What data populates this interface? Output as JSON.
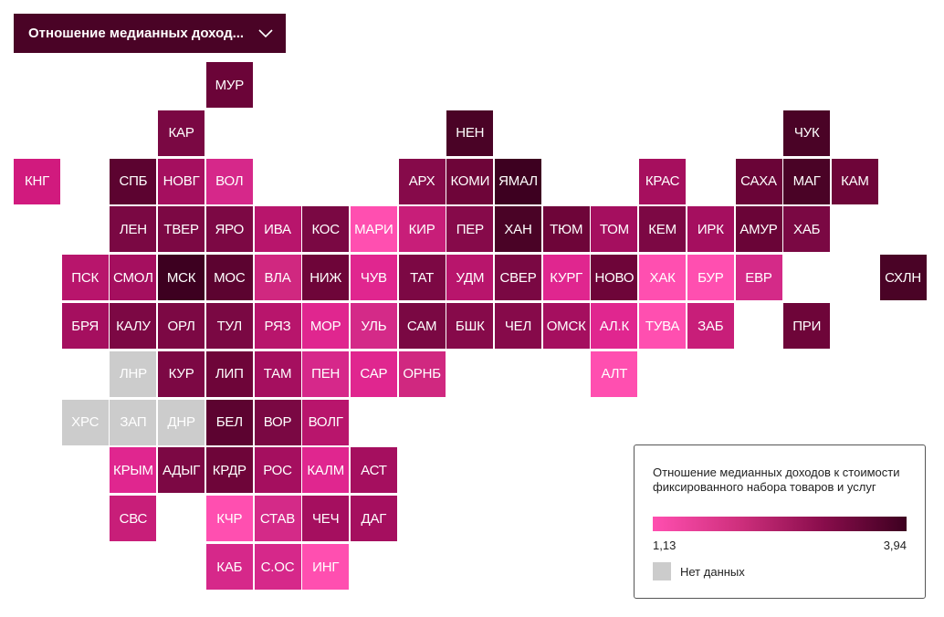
{
  "selector": {
    "label": "Отношение медианных доход...",
    "icon": "chevron-down-icon"
  },
  "legend": {
    "title": "Отношение медианных доходов к стоимости фиксированного набора товаров и услуг",
    "min": "1,13",
    "max": "3,94",
    "gradient_colors": [
      "#ff4fb0",
      "#d0307e",
      "#8a0d4c",
      "#3d0020"
    ],
    "nodata_label": "Нет данных",
    "nodata_color": "#cccccc"
  },
  "regions": [
    {
      "label": "МУР",
      "row": 0,
      "col": 4,
      "color": "#6b0438"
    },
    {
      "label": "КАР",
      "row": 1,
      "col": 3,
      "color": "#7a0843"
    },
    {
      "label": "НЕН",
      "row": 1,
      "col": 9,
      "color": "#4a0326"
    },
    {
      "label": "ЧУК",
      "row": 1,
      "col": 16,
      "color": "#4a0326"
    },
    {
      "label": "КНГ",
      "row": 2,
      "col": 0,
      "color": "#d11a7e"
    },
    {
      "label": "СПБ",
      "row": 2,
      "col": 2,
      "color": "#5c0330"
    },
    {
      "label": "НОВГ",
      "row": 2,
      "col": 3,
      "color": "#a50f5f"
    },
    {
      "label": "ВОЛ",
      "row": 2,
      "col": 4,
      "color": "#d6288a"
    },
    {
      "label": "АРХ",
      "row": 2,
      "col": 8,
      "color": "#860a4a"
    },
    {
      "label": "КОМИ",
      "row": 2,
      "col": 9,
      "color": "#6e0539"
    },
    {
      "label": "ЯМАЛ",
      "row": 2,
      "col": 10,
      "color": "#3d0020"
    },
    {
      "label": "КРАС",
      "row": 2,
      "col": 13,
      "color": "#a60f5e"
    },
    {
      "label": "САХА",
      "row": 2,
      "col": 15,
      "color": "#6a0437"
    },
    {
      "label": "МАГ",
      "row": 2,
      "col": 16,
      "color": "#4a0326"
    },
    {
      "label": "КАМ",
      "row": 2,
      "col": 17,
      "color": "#6e0539"
    },
    {
      "label": "ЛЕН",
      "row": 3,
      "col": 2,
      "color": "#7a0843"
    },
    {
      "label": "ТВЕР",
      "row": 3,
      "col": 3,
      "color": "#7c0844"
    },
    {
      "label": "ЯРО",
      "row": 3,
      "col": 4,
      "color": "#7c0844"
    },
    {
      "label": "ИВА",
      "row": 3,
      "col": 5,
      "color": "#b8156c"
    },
    {
      "label": "КОС",
      "row": 3,
      "col": 6,
      "color": "#7a0843"
    },
    {
      "label": "МАРИ",
      "row": 3,
      "col": 7,
      "color": "#ff4fb0"
    },
    {
      "label": "КИР",
      "row": 3,
      "col": 8,
      "color": "#c81e79"
    },
    {
      "label": "ПЕР",
      "row": 3,
      "col": 9,
      "color": "#860a4a"
    },
    {
      "label": "ХАН",
      "row": 3,
      "col": 10,
      "color": "#4a0326"
    },
    {
      "label": "ТЮМ",
      "row": 3,
      "col": 11,
      "color": "#6e0539"
    },
    {
      "label": "ТОМ",
      "row": 3,
      "col": 12,
      "color": "#a50f5f"
    },
    {
      "label": "КЕМ",
      "row": 3,
      "col": 13,
      "color": "#7c0844"
    },
    {
      "label": "ИРК",
      "row": 3,
      "col": 14,
      "color": "#a50f5f"
    },
    {
      "label": "АМУР",
      "row": 3,
      "col": 15,
      "color": "#6a0437"
    },
    {
      "label": "ХАБ",
      "row": 3,
      "col": 16,
      "color": "#7a0843"
    },
    {
      "label": "ПСК",
      "row": 4,
      "col": 1,
      "color": "#b8156c"
    },
    {
      "label": "СМОЛ",
      "row": 4,
      "col": 2,
      "color": "#a50f5f"
    },
    {
      "label": "МСК",
      "row": 4,
      "col": 3,
      "color": "#3d0020"
    },
    {
      "label": "МОС",
      "row": 4,
      "col": 4,
      "color": "#5c0330"
    },
    {
      "label": "ВЛА",
      "row": 4,
      "col": 5,
      "color": "#d02880"
    },
    {
      "label": "НИЖ",
      "row": 4,
      "col": 6,
      "color": "#6e0539"
    },
    {
      "label": "ЧУВ",
      "row": 4,
      "col": 7,
      "color": "#e0268f"
    },
    {
      "label": "ТАТ",
      "row": 4,
      "col": 8,
      "color": "#7c0844"
    },
    {
      "label": "УДМ",
      "row": 4,
      "col": 9,
      "color": "#b8156c"
    },
    {
      "label": "СВЕР",
      "row": 4,
      "col": 10,
      "color": "#7a0843"
    },
    {
      "label": "КУРГ",
      "row": 4,
      "col": 11,
      "color": "#e0268f"
    },
    {
      "label": "НОВО",
      "row": 4,
      "col": 12,
      "color": "#6e0539"
    },
    {
      "label": "ХАК",
      "row": 4,
      "col": 13,
      "color": "#ff4fb0"
    },
    {
      "label": "БУР",
      "row": 4,
      "col": 14,
      "color": "#ff4fb0"
    },
    {
      "label": "ЕВР",
      "row": 4,
      "col": 15,
      "color": "#d42a88"
    },
    {
      "label": "СХЛН",
      "row": 4,
      "col": 18,
      "color": "#4a0326"
    },
    {
      "label": "БРЯ",
      "row": 5,
      "col": 1,
      "color": "#a50f5f"
    },
    {
      "label": "КАЛУ",
      "row": 5,
      "col": 2,
      "color": "#7c0844"
    },
    {
      "label": "ОРЛ",
      "row": 5,
      "col": 3,
      "color": "#7c0844"
    },
    {
      "label": "ТУЛ",
      "row": 5,
      "col": 4,
      "color": "#7a0843"
    },
    {
      "label": "РЯЗ",
      "row": 5,
      "col": 5,
      "color": "#b8156c"
    },
    {
      "label": "МОР",
      "row": 5,
      "col": 6,
      "color": "#e0268f"
    },
    {
      "label": "УЛЬ",
      "row": 5,
      "col": 7,
      "color": "#d42a88"
    },
    {
      "label": "САМ",
      "row": 5,
      "col": 8,
      "color": "#7a0843"
    },
    {
      "label": "БШК",
      "row": 5,
      "col": 9,
      "color": "#860a4a"
    },
    {
      "label": "ЧЕЛ",
      "row": 5,
      "col": 10,
      "color": "#860a4a"
    },
    {
      "label": "ОМСК",
      "row": 5,
      "col": 11,
      "color": "#a50f5f"
    },
    {
      "label": "АЛ.К",
      "row": 5,
      "col": 12,
      "color": "#e0268f"
    },
    {
      "label": "ТУВА",
      "row": 5,
      "col": 13,
      "color": "#ff4fb0"
    },
    {
      "label": "ЗАБ",
      "row": 5,
      "col": 14,
      "color": "#c81e79"
    },
    {
      "label": "ПРИ",
      "row": 5,
      "col": 16,
      "color": "#6e0539"
    },
    {
      "label": "ЛНР",
      "row": 6,
      "col": 2,
      "color": "#cccccc",
      "nodata": true
    },
    {
      "label": "КУР",
      "row": 6,
      "col": 3,
      "color": "#7c0844"
    },
    {
      "label": "ЛИП",
      "row": 6,
      "col": 4,
      "color": "#6e0539"
    },
    {
      "label": "ТАМ",
      "row": 6,
      "col": 5,
      "color": "#a50f5f"
    },
    {
      "label": "ПЕН",
      "row": 6,
      "col": 6,
      "color": "#d6288a"
    },
    {
      "label": "САР",
      "row": 6,
      "col": 7,
      "color": "#e0268f"
    },
    {
      "label": "ОРНБ",
      "row": 6,
      "col": 8,
      "color": "#d02880"
    },
    {
      "label": "АЛТ",
      "row": 6,
      "col": 12,
      "color": "#ff4fb0"
    },
    {
      "label": "ХРС",
      "row": 7,
      "col": 1,
      "color": "#cccccc",
      "nodata": true
    },
    {
      "label": "ЗАП",
      "row": 7,
      "col": 2,
      "color": "#cccccc",
      "nodata": true
    },
    {
      "label": "ДНР",
      "row": 7,
      "col": 3,
      "color": "#cccccc",
      "nodata": true
    },
    {
      "label": "БЕЛ",
      "row": 7,
      "col": 4,
      "color": "#5c0330"
    },
    {
      "label": "ВОР",
      "row": 7,
      "col": 5,
      "color": "#7a0843"
    },
    {
      "label": "ВОЛГ",
      "row": 7,
      "col": 6,
      "color": "#b8156c"
    },
    {
      "label": "КРЫМ",
      "row": 8,
      "col": 2,
      "color": "#e0268f"
    },
    {
      "label": "АДЫГ",
      "row": 8,
      "col": 3,
      "color": "#7c0844"
    },
    {
      "label": "КРДР",
      "row": 8,
      "col": 4,
      "color": "#6e0539"
    },
    {
      "label": "РОС",
      "row": 8,
      "col": 5,
      "color": "#a50f5f"
    },
    {
      "label": "КАЛМ",
      "row": 8,
      "col": 6,
      "color": "#e0268f"
    },
    {
      "label": "АСТ",
      "row": 8,
      "col": 7,
      "color": "#a50f5f"
    },
    {
      "label": "СВС",
      "row": 9,
      "col": 2,
      "color": "#c81e79"
    },
    {
      "label": "КЧР",
      "row": 9,
      "col": 4,
      "color": "#ff4fb0"
    },
    {
      "label": "СТАВ",
      "row": 9,
      "col": 5,
      "color": "#d42a88"
    },
    {
      "label": "ЧЕЧ",
      "row": 9,
      "col": 6,
      "color": "#a50f5f"
    },
    {
      "label": "ДАГ",
      "row": 9,
      "col": 7,
      "color": "#a50f5f"
    },
    {
      "label": "КАБ",
      "row": 10,
      "col": 4,
      "color": "#d6288a"
    },
    {
      "label": "С.ОС",
      "row": 10,
      "col": 5,
      "color": "#d6288a"
    },
    {
      "label": "ИНГ",
      "row": 10,
      "col": 6,
      "color": "#ff4fb0"
    }
  ]
}
